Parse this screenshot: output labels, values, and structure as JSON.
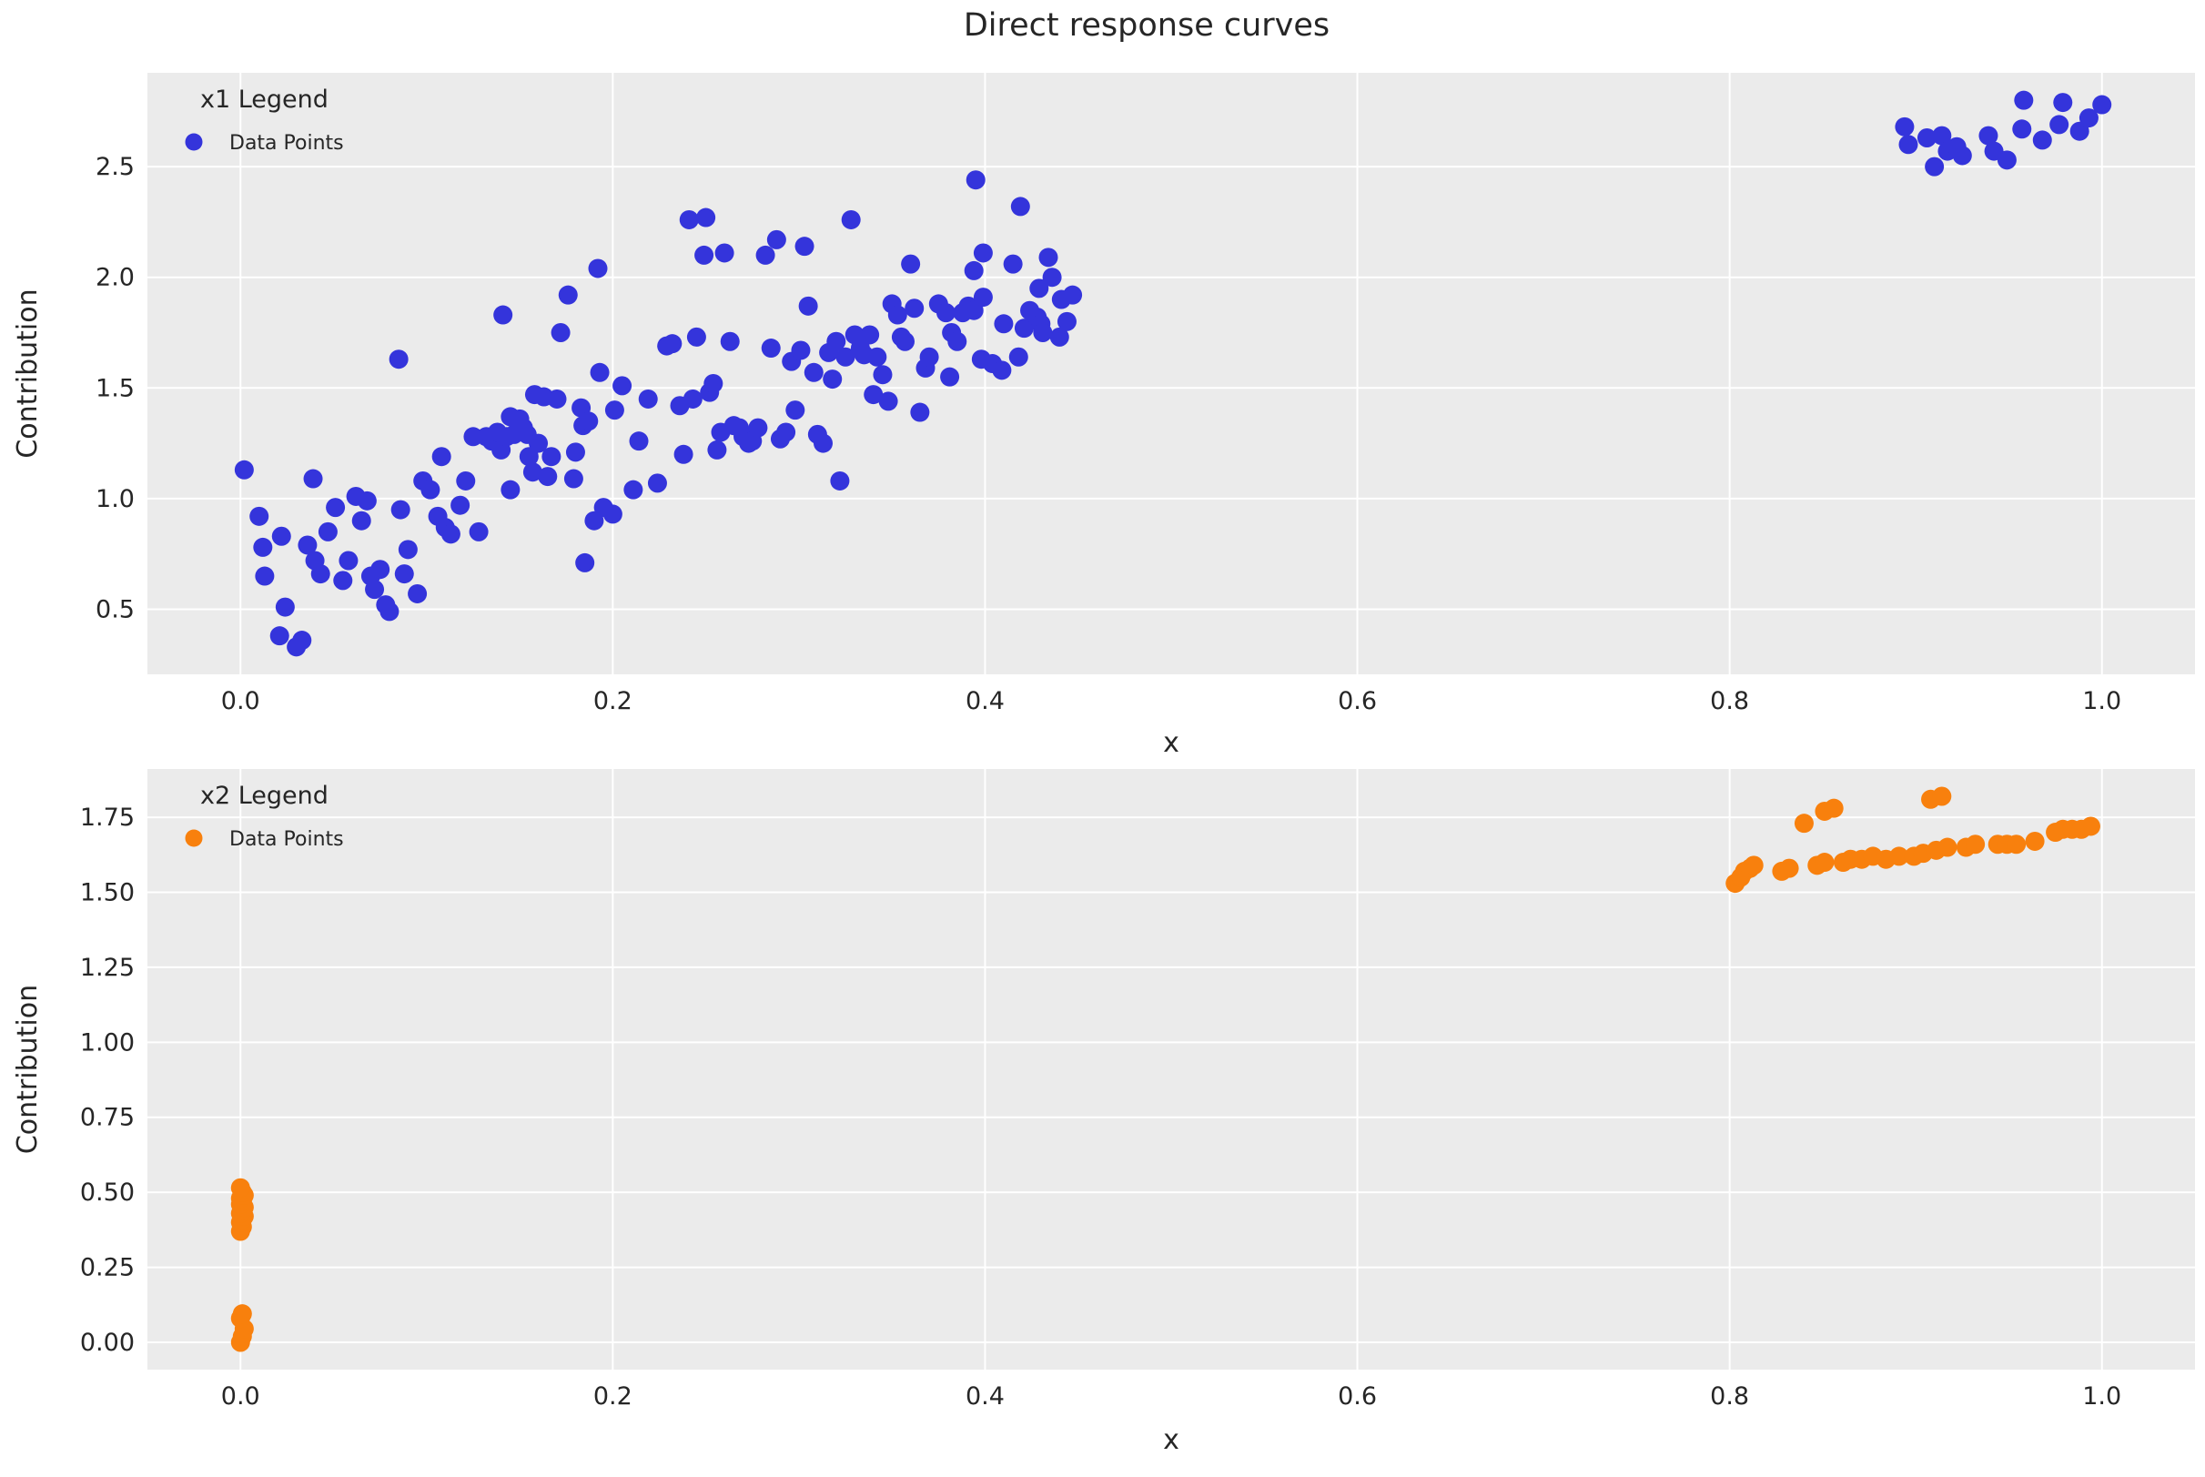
{
  "figure": {
    "title": "Direct response curves",
    "background": "#ffffff",
    "axes_background": "#ebebeb",
    "grid_color": "#ffffff",
    "text_color": "#262626"
  },
  "chart_data": [
    {
      "type": "scatter",
      "xlabel": "x",
      "ylabel": "Contribution",
      "xlim": [
        -0.05,
        1.05
      ],
      "ylim": [
        0.206,
        2.924
      ],
      "grid": true,
      "legend": {
        "title": "x1 Legend",
        "position": "upper left",
        "entries": [
          {
            "label": "Data Points",
            "color": "#3434db"
          }
        ]
      },
      "xticks": {
        "values": [
          0.0,
          0.2,
          0.4,
          0.6,
          0.8,
          1.0
        ],
        "labels": [
          "0.0",
          "0.2",
          "0.4",
          "0.6",
          "0.8",
          "1.0"
        ]
      },
      "yticks": {
        "values": [
          0.5,
          1.0,
          1.5,
          2.0,
          2.5
        ],
        "labels": [
          "0.5",
          "1.0",
          "1.5",
          "2.0",
          "2.5"
        ]
      },
      "series": [
        {
          "name": "Data Points",
          "color": "#3434db",
          "marker_radius": 10.5,
          "points": [
            [
              0.002,
              1.13
            ],
            [
              0.01,
              0.92
            ],
            [
              0.012,
              0.78
            ],
            [
              0.013,
              0.65
            ],
            [
              0.021,
              0.38
            ],
            [
              0.022,
              0.83
            ],
            [
              0.024,
              0.51
            ],
            [
              0.03,
              0.33
            ],
            [
              0.033,
              0.36
            ],
            [
              0.036,
              0.79
            ],
            [
              0.039,
              1.09
            ],
            [
              0.04,
              0.72
            ],
            [
              0.043,
              0.66
            ],
            [
              0.047,
              0.85
            ],
            [
              0.051,
              0.96
            ],
            [
              0.055,
              0.63
            ],
            [
              0.058,
              0.72
            ],
            [
              0.062,
              1.01
            ],
            [
              0.065,
              0.9
            ],
            [
              0.068,
              0.99
            ],
            [
              0.07,
              0.65
            ],
            [
              0.072,
              0.59
            ],
            [
              0.075,
              0.68
            ],
            [
              0.078,
              0.52
            ],
            [
              0.08,
              0.49
            ],
            [
              0.085,
              1.63
            ],
            [
              0.086,
              0.95
            ],
            [
              0.088,
              0.66
            ],
            [
              0.09,
              0.77
            ],
            [
              0.095,
              0.57
            ],
            [
              0.098,
              1.08
            ],
            [
              0.102,
              1.04
            ],
            [
              0.106,
              0.92
            ],
            [
              0.108,
              1.19
            ],
            [
              0.11,
              0.87
            ],
            [
              0.113,
              0.84
            ],
            [
              0.118,
              0.97
            ],
            [
              0.121,
              1.08
            ],
            [
              0.125,
              1.28
            ],
            [
              0.128,
              0.85
            ],
            [
              0.132,
              1.28
            ],
            [
              0.135,
              1.26
            ],
            [
              0.138,
              1.3
            ],
            [
              0.14,
              1.22
            ],
            [
              0.141,
              1.83
            ],
            [
              0.143,
              1.28
            ],
            [
              0.145,
              1.37
            ],
            [
              0.145,
              1.04
            ],
            [
              0.147,
              1.29
            ],
            [
              0.15,
              1.36
            ],
            [
              0.152,
              1.32
            ],
            [
              0.154,
              1.29
            ],
            [
              0.155,
              1.19
            ],
            [
              0.157,
              1.12
            ],
            [
              0.158,
              1.47
            ],
            [
              0.16,
              1.25
            ],
            [
              0.163,
              1.46
            ],
            [
              0.165,
              1.1
            ],
            [
              0.167,
              1.19
            ],
            [
              0.17,
              1.45
            ],
            [
              0.172,
              1.75
            ],
            [
              0.176,
              1.92
            ],
            [
              0.179,
              1.09
            ],
            [
              0.18,
              1.21
            ],
            [
              0.183,
              1.41
            ],
            [
              0.184,
              1.33
            ],
            [
              0.185,
              0.71
            ],
            [
              0.187,
              1.35
            ],
            [
              0.19,
              0.9
            ],
            [
              0.192,
              2.04
            ],
            [
              0.193,
              1.57
            ],
            [
              0.195,
              0.96
            ],
            [
              0.2,
              0.93
            ],
            [
              0.201,
              1.4
            ],
            [
              0.205,
              1.51
            ],
            [
              0.211,
              1.04
            ],
            [
              0.214,
              1.26
            ],
            [
              0.219,
              1.45
            ],
            [
              0.224,
              1.07
            ],
            [
              0.229,
              1.69
            ],
            [
              0.232,
              1.7
            ],
            [
              0.236,
              1.42
            ],
            [
              0.238,
              1.2
            ],
            [
              0.241,
              2.26
            ],
            [
              0.243,
              1.45
            ],
            [
              0.245,
              1.73
            ],
            [
              0.249,
              2.1
            ],
            [
              0.25,
              2.27
            ],
            [
              0.252,
              1.48
            ],
            [
              0.254,
              1.52
            ],
            [
              0.256,
              1.22
            ],
            [
              0.258,
              1.3
            ],
            [
              0.26,
              2.11
            ],
            [
              0.263,
              1.71
            ],
            [
              0.265,
              1.33
            ],
            [
              0.268,
              1.32
            ],
            [
              0.27,
              1.28
            ],
            [
              0.273,
              1.25
            ],
            [
              0.275,
              1.26
            ],
            [
              0.278,
              1.32
            ],
            [
              0.282,
              2.1
            ],
            [
              0.285,
              1.68
            ],
            [
              0.288,
              2.17
            ],
            [
              0.29,
              1.27
            ],
            [
              0.293,
              1.3
            ],
            [
              0.296,
              1.62
            ],
            [
              0.298,
              1.4
            ],
            [
              0.301,
              1.67
            ],
            [
              0.303,
              2.14
            ],
            [
              0.305,
              1.87
            ],
            [
              0.308,
              1.57
            ],
            [
              0.31,
              1.29
            ],
            [
              0.313,
              1.25
            ],
            [
              0.316,
              1.66
            ],
            [
              0.318,
              1.54
            ],
            [
              0.32,
              1.71
            ],
            [
              0.322,
              1.08
            ],
            [
              0.325,
              1.64
            ],
            [
              0.328,
              2.26
            ],
            [
              0.33,
              1.74
            ],
            [
              0.333,
              1.68
            ],
            [
              0.335,
              1.65
            ],
            [
              0.338,
              1.74
            ],
            [
              0.34,
              1.47
            ],
            [
              0.342,
              1.64
            ],
            [
              0.345,
              1.56
            ],
            [
              0.348,
              1.44
            ],
            [
              0.35,
              1.88
            ],
            [
              0.353,
              1.83
            ],
            [
              0.355,
              1.73
            ],
            [
              0.357,
              1.71
            ],
            [
              0.36,
              2.06
            ],
            [
              0.362,
              1.86
            ],
            [
              0.365,
              1.39
            ],
            [
              0.368,
              1.59
            ],
            [
              0.37,
              1.64
            ],
            [
              0.375,
              1.88
            ],
            [
              0.379,
              1.84
            ],
            [
              0.381,
              1.55
            ],
            [
              0.382,
              1.75
            ],
            [
              0.385,
              1.71
            ],
            [
              0.388,
              1.84
            ],
            [
              0.391,
              1.87
            ],
            [
              0.394,
              1.85
            ],
            [
              0.394,
              2.03
            ],
            [
              0.395,
              2.44
            ],
            [
              0.398,
              1.63
            ],
            [
              0.399,
              1.91
            ],
            [
              0.399,
              2.11
            ],
            [
              0.404,
              1.61
            ],
            [
              0.409,
              1.58
            ],
            [
              0.41,
              1.79
            ],
            [
              0.415,
              2.06
            ],
            [
              0.418,
              1.64
            ],
            [
              0.419,
              2.32
            ],
            [
              0.421,
              1.77
            ],
            [
              0.424,
              1.85
            ],
            [
              0.428,
              1.82
            ],
            [
              0.429,
              1.95
            ],
            [
              0.43,
              1.79
            ],
            [
              0.431,
              1.75
            ],
            [
              0.434,
              2.09
            ],
            [
              0.436,
              2.0
            ],
            [
              0.44,
              1.73
            ],
            [
              0.441,
              1.9
            ],
            [
              0.444,
              1.8
            ],
            [
              0.447,
              1.92
            ],
            [
              0.894,
              2.68
            ],
            [
              0.896,
              2.6
            ],
            [
              0.906,
              2.63
            ],
            [
              0.91,
              2.5
            ],
            [
              0.914,
              2.64
            ],
            [
              0.917,
              2.57
            ],
            [
              0.922,
              2.59
            ],
            [
              0.925,
              2.55
            ],
            [
              0.939,
              2.64
            ],
            [
              0.942,
              2.57
            ],
            [
              0.949,
              2.53
            ],
            [
              0.957,
              2.67
            ],
            [
              0.958,
              2.8
            ],
            [
              0.968,
              2.62
            ],
            [
              0.977,
              2.69
            ],
            [
              0.979,
              2.79
            ],
            [
              0.988,
              2.66
            ],
            [
              0.993,
              2.72
            ],
            [
              1.0,
              2.78
            ]
          ]
        }
      ]
    },
    {
      "type": "scatter",
      "xlabel": "x",
      "ylabel": "Contribution",
      "xlim": [
        -0.05,
        1.05
      ],
      "ylim": [
        -0.091,
        1.911
      ],
      "grid": true,
      "legend": {
        "title": "x2 Legend",
        "position": "upper left",
        "entries": [
          {
            "label": "Data Points",
            "color": "#f8800d"
          }
        ]
      },
      "xticks": {
        "values": [
          0.0,
          0.2,
          0.4,
          0.6,
          0.8,
          1.0
        ],
        "labels": [
          "0.0",
          "0.2",
          "0.4",
          "0.6",
          "0.8",
          "1.0"
        ]
      },
      "yticks": {
        "values": [
          0.0,
          0.25,
          0.5,
          0.75,
          1.0,
          1.25,
          1.5,
          1.75
        ],
        "labels": [
          "0.00",
          "0.25",
          "0.50",
          "0.75",
          "1.00",
          "1.25",
          "1.50",
          "1.75"
        ]
      },
      "series": [
        {
          "name": "Data Points",
          "color": "#f8800d",
          "marker_radius": 10.5,
          "points": [
            [
              0,
              0.0
            ],
            [
              0.001,
              0.02
            ],
            [
              0.002,
              0.045
            ],
            [
              0,
              0.08
            ],
            [
              0.001,
              0.095
            ],
            [
              0,
              0.37
            ],
            [
              0.001,
              0.385
            ],
            [
              0,
              0.4
            ],
            [
              0.001,
              0.41
            ],
            [
              0.002,
              0.42
            ],
            [
              0,
              0.43
            ],
            [
              0.001,
              0.44
            ],
            [
              0.002,
              0.45
            ],
            [
              0,
              0.46
            ],
            [
              0.001,
              0.47
            ],
            [
              0,
              0.48
            ],
            [
              0.002,
              0.49
            ],
            [
              0.001,
              0.5
            ],
            [
              0,
              0.515
            ],
            [
              0.803,
              1.53
            ],
            [
              0.806,
              1.55
            ],
            [
              0.808,
              1.57
            ],
            [
              0.811,
              1.58
            ],
            [
              0.813,
              1.59
            ],
            [
              0.828,
              1.57
            ],
            [
              0.832,
              1.58
            ],
            [
              0.847,
              1.59
            ],
            [
              0.851,
              1.6
            ],
            [
              0.861,
              1.6
            ],
            [
              0.865,
              1.61
            ],
            [
              0.871,
              1.61
            ],
            [
              0.877,
              1.62
            ],
            [
              0.884,
              1.61
            ],
            [
              0.891,
              1.62
            ],
            [
              0.899,
              1.62
            ],
            [
              0.904,
              1.63
            ],
            [
              0.911,
              1.64
            ],
            [
              0.917,
              1.65
            ],
            [
              0.927,
              1.65
            ],
            [
              0.932,
              1.66
            ],
            [
              0.944,
              1.66
            ],
            [
              0.949,
              1.66
            ],
            [
              0.954,
              1.66
            ],
            [
              0.964,
              1.67
            ],
            [
              0.975,
              1.7
            ],
            [
              0.979,
              1.71
            ],
            [
              0.984,
              1.71
            ],
            [
              0.989,
              1.71
            ],
            [
              0.994,
              1.72
            ],
            [
              0.84,
              1.73
            ],
            [
              0.851,
              1.77
            ],
            [
              0.856,
              1.78
            ],
            [
              0.908,
              1.81
            ],
            [
              0.914,
              1.82
            ]
          ]
        }
      ]
    }
  ]
}
